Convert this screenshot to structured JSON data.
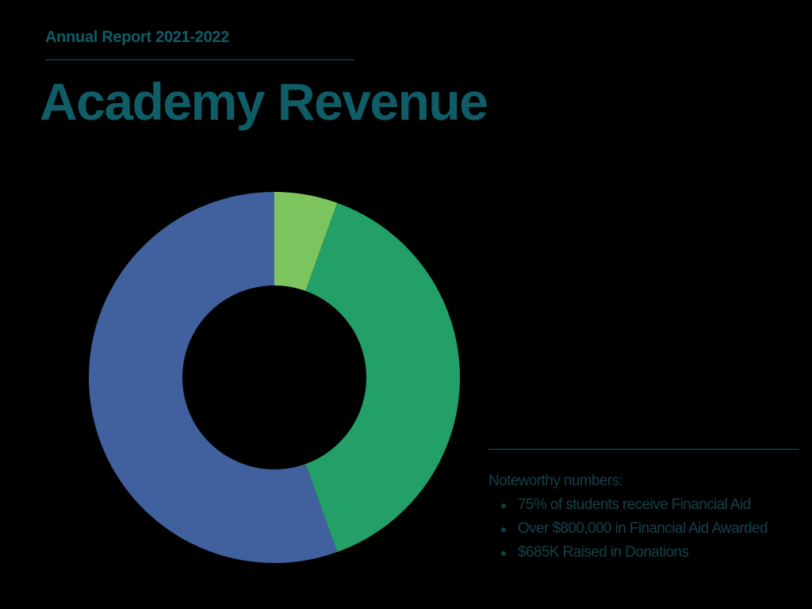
{
  "header": {
    "eyebrow": "Annual Report 2021-2022",
    "title": "Academy Revenue"
  },
  "theme": {
    "title_color": "#0f5d67",
    "text_color": "#14414a",
    "background": "#000000"
  },
  "chart_data": {
    "type": "pie",
    "donut": true,
    "title": "",
    "categories": [
      "",
      "",
      ""
    ],
    "values": [
      5.5,
      39.0,
      55.5
    ],
    "colors": [
      "#7cc55e",
      "#22a067",
      "#41619e"
    ],
    "start_angle_deg": 0,
    "direction": "clockwise",
    "legend": "none"
  },
  "notes": {
    "heading": "Noteworthy numbers:",
    "items": [
      "75% of students receive Financial Aid",
      "Over $800,000 in Financial Aid Awarded",
      "$685K Raised in Donations"
    ]
  }
}
